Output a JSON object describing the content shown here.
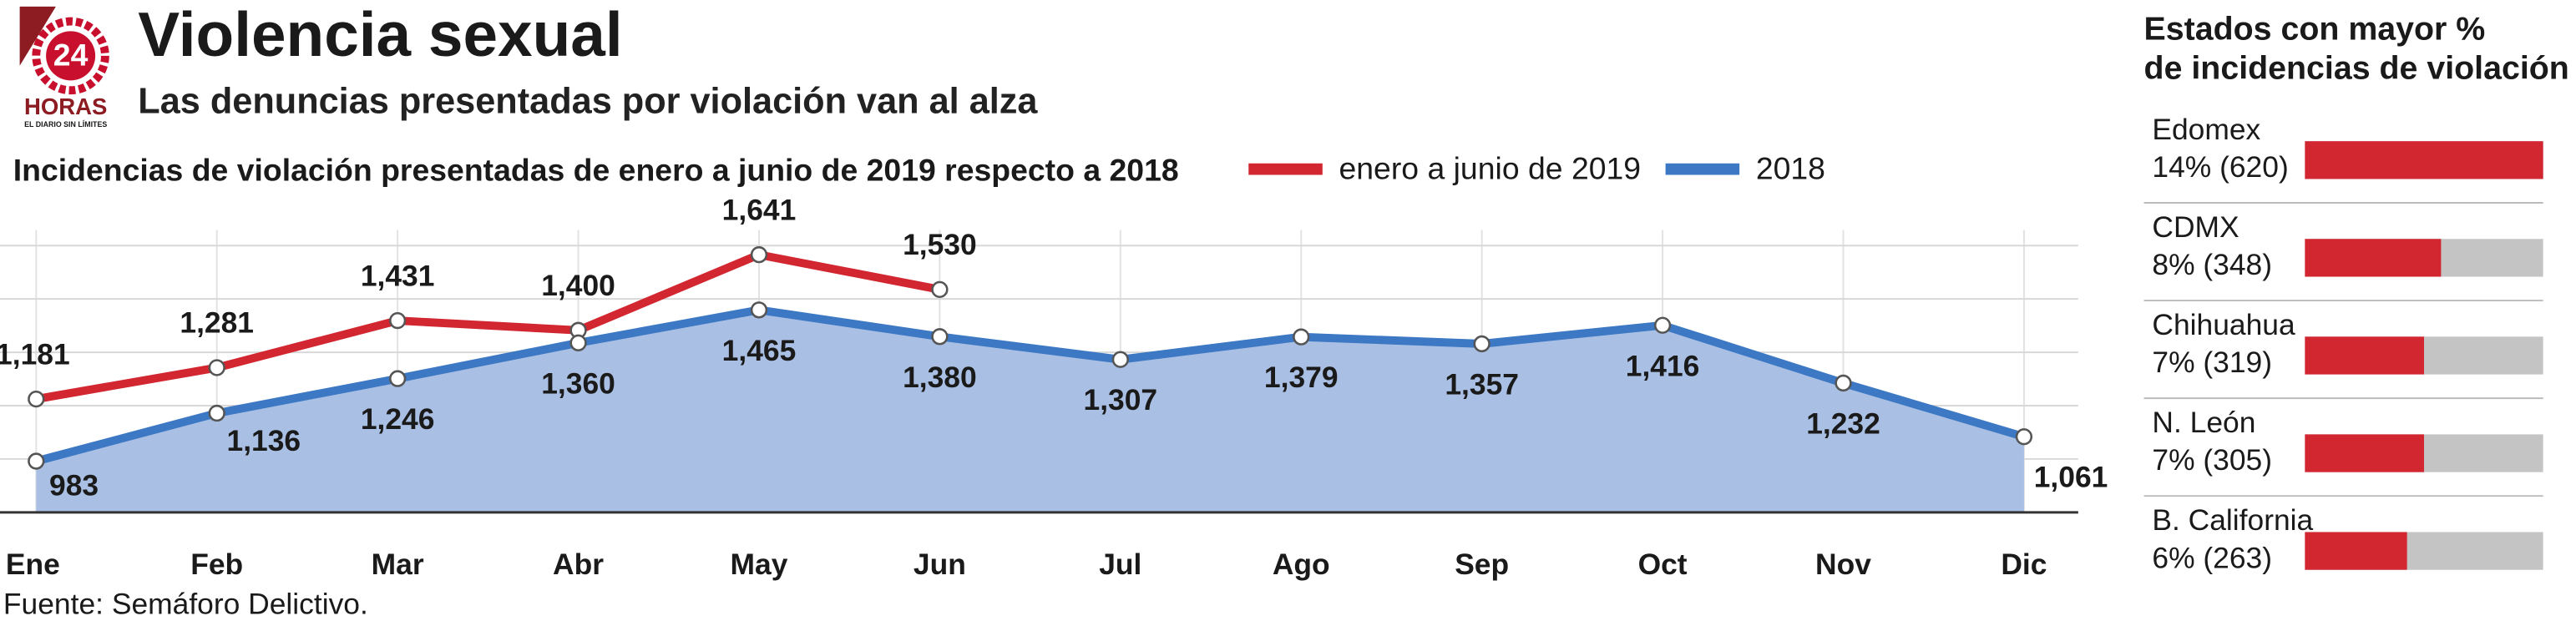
{
  "logo": {
    "number": "24",
    "name": "HORAS",
    "tagline": "EL DIARIO SIN LÍMITES"
  },
  "title": "Violencia sexual",
  "subtitle": "Las denuncias presentadas por violación van al alza",
  "source": "Fuente: Semáforo Delictivo.",
  "chart_data": [
    {
      "type": "line",
      "title": "Incidencias de violación presentadas de enero a junio de 2019 respecto a 2018",
      "categories": [
        "Ene",
        "Feb",
        "Mar",
        "Abr",
        "May",
        "Jun",
        "Jul",
        "Ago",
        "Sep",
        "Oct",
        "Nov",
        "Dic"
      ],
      "series": [
        {
          "name": "enero a junio de 2019",
          "color": "#d22630",
          "values": [
            1181,
            1281,
            1431,
            1400,
            1641,
            1530,
            null,
            null,
            null,
            null,
            null,
            null
          ],
          "value_labels": [
            "1,181",
            "1,281",
            "1,431",
            "1,400",
            "1,641",
            "1,530",
            null,
            null,
            null,
            null,
            null,
            null
          ]
        },
        {
          "name": "2018",
          "color": "#3c78c3",
          "area_color": "#a9bfe3",
          "values": [
            983,
            1136,
            1246,
            1360,
            1465,
            1380,
            1307,
            1379,
            1357,
            1416,
            1232,
            1061
          ],
          "value_labels": [
            "983",
            "1,136",
            "1,246",
            "1,360",
            "1,465",
            "1,380",
            "1,307",
            "1,379",
            "1,357",
            "1,416",
            "1,232",
            "1,061"
          ]
        }
      ],
      "ylim": [
        820,
        1720
      ],
      "yticks": [
        990,
        1160,
        1330,
        1500,
        1670
      ],
      "grid": true,
      "legend": "top"
    },
    {
      "type": "hbar",
      "title": "Estados con mayor % de incidencias de violación",
      "categories": [
        "Edomex",
        "CDMX",
        "Chihuahua",
        "N. León",
        "B. California"
      ],
      "values": [
        14,
        8,
        7,
        7,
        6
      ],
      "value_labels": [
        "14% (620)",
        "8% (348)",
        "7% (319)",
        "7% (305)",
        "6% (263)"
      ],
      "color": "#d22630",
      "track_color": "#c4c4c4",
      "xlim": [
        0,
        14
      ]
    }
  ]
}
